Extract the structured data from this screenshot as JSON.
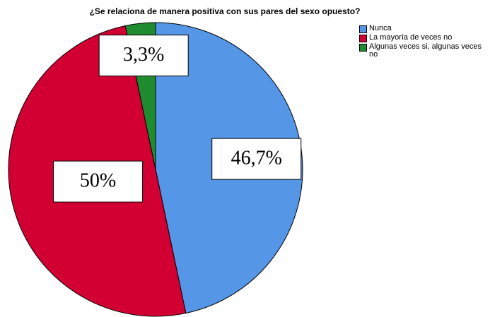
{
  "chart_data": {
    "type": "pie",
    "title": "¿Se relaciona de manera positiva con sus pares del sexo opuesto?",
    "categories": [
      "Nunca",
      "La mayoría de veces no",
      "Algunas veces si, algunas veces no"
    ],
    "values": [
      46.7,
      50,
      3.3
    ],
    "value_labels": [
      "46,7%",
      "50%",
      "3,3%"
    ],
    "colors": [
      "#5596e6",
      "#d20032",
      "#1e8c2f"
    ],
    "legend": "upper right"
  }
}
